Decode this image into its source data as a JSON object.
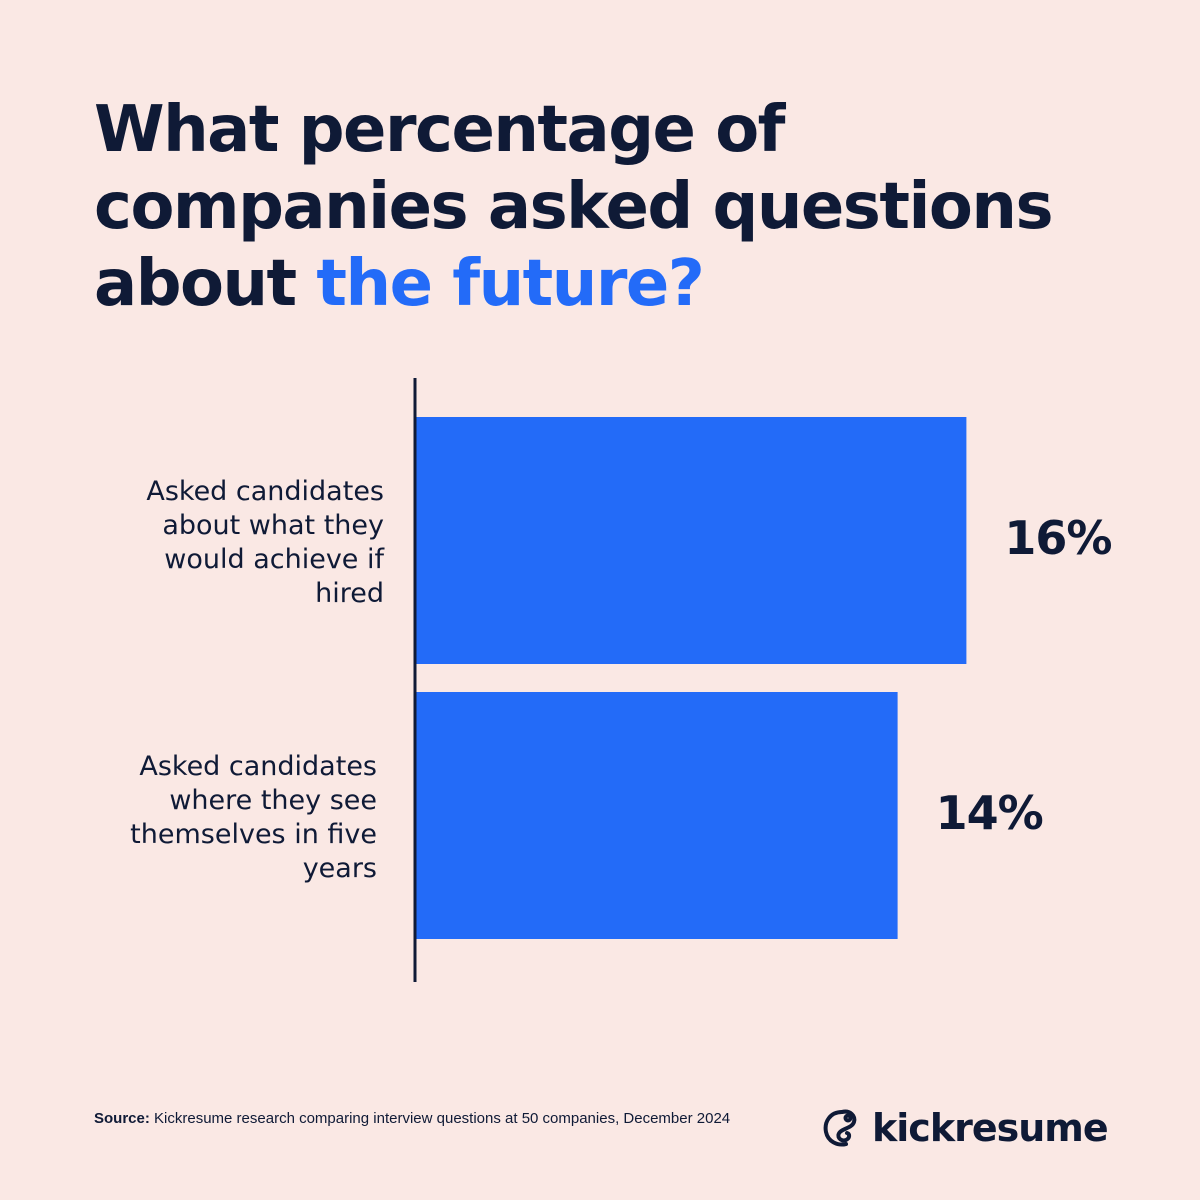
{
  "title": {
    "part1": "What percentage of companies asked questions about ",
    "highlight": "the future?"
  },
  "chart_data": {
    "type": "bar",
    "orientation": "horizontal",
    "categories": [
      "Asked candidates about what they would achieve if hired",
      "Asked candidates where they see themselves in five years"
    ],
    "values": [
      16,
      14
    ],
    "value_labels": [
      "16%",
      "14%"
    ],
    "xlim": [
      0,
      23
    ],
    "grid": false,
    "bar_color": "#236bf8"
  },
  "source": {
    "label": "Source:",
    "text": " Kickresume research comparing interview questions at 50 companies, December 2024"
  },
  "brand": {
    "name": "kickresume"
  },
  "colors": {
    "background": "#fae8e4",
    "text": "#0f1a36",
    "accent": "#236bf8"
  }
}
